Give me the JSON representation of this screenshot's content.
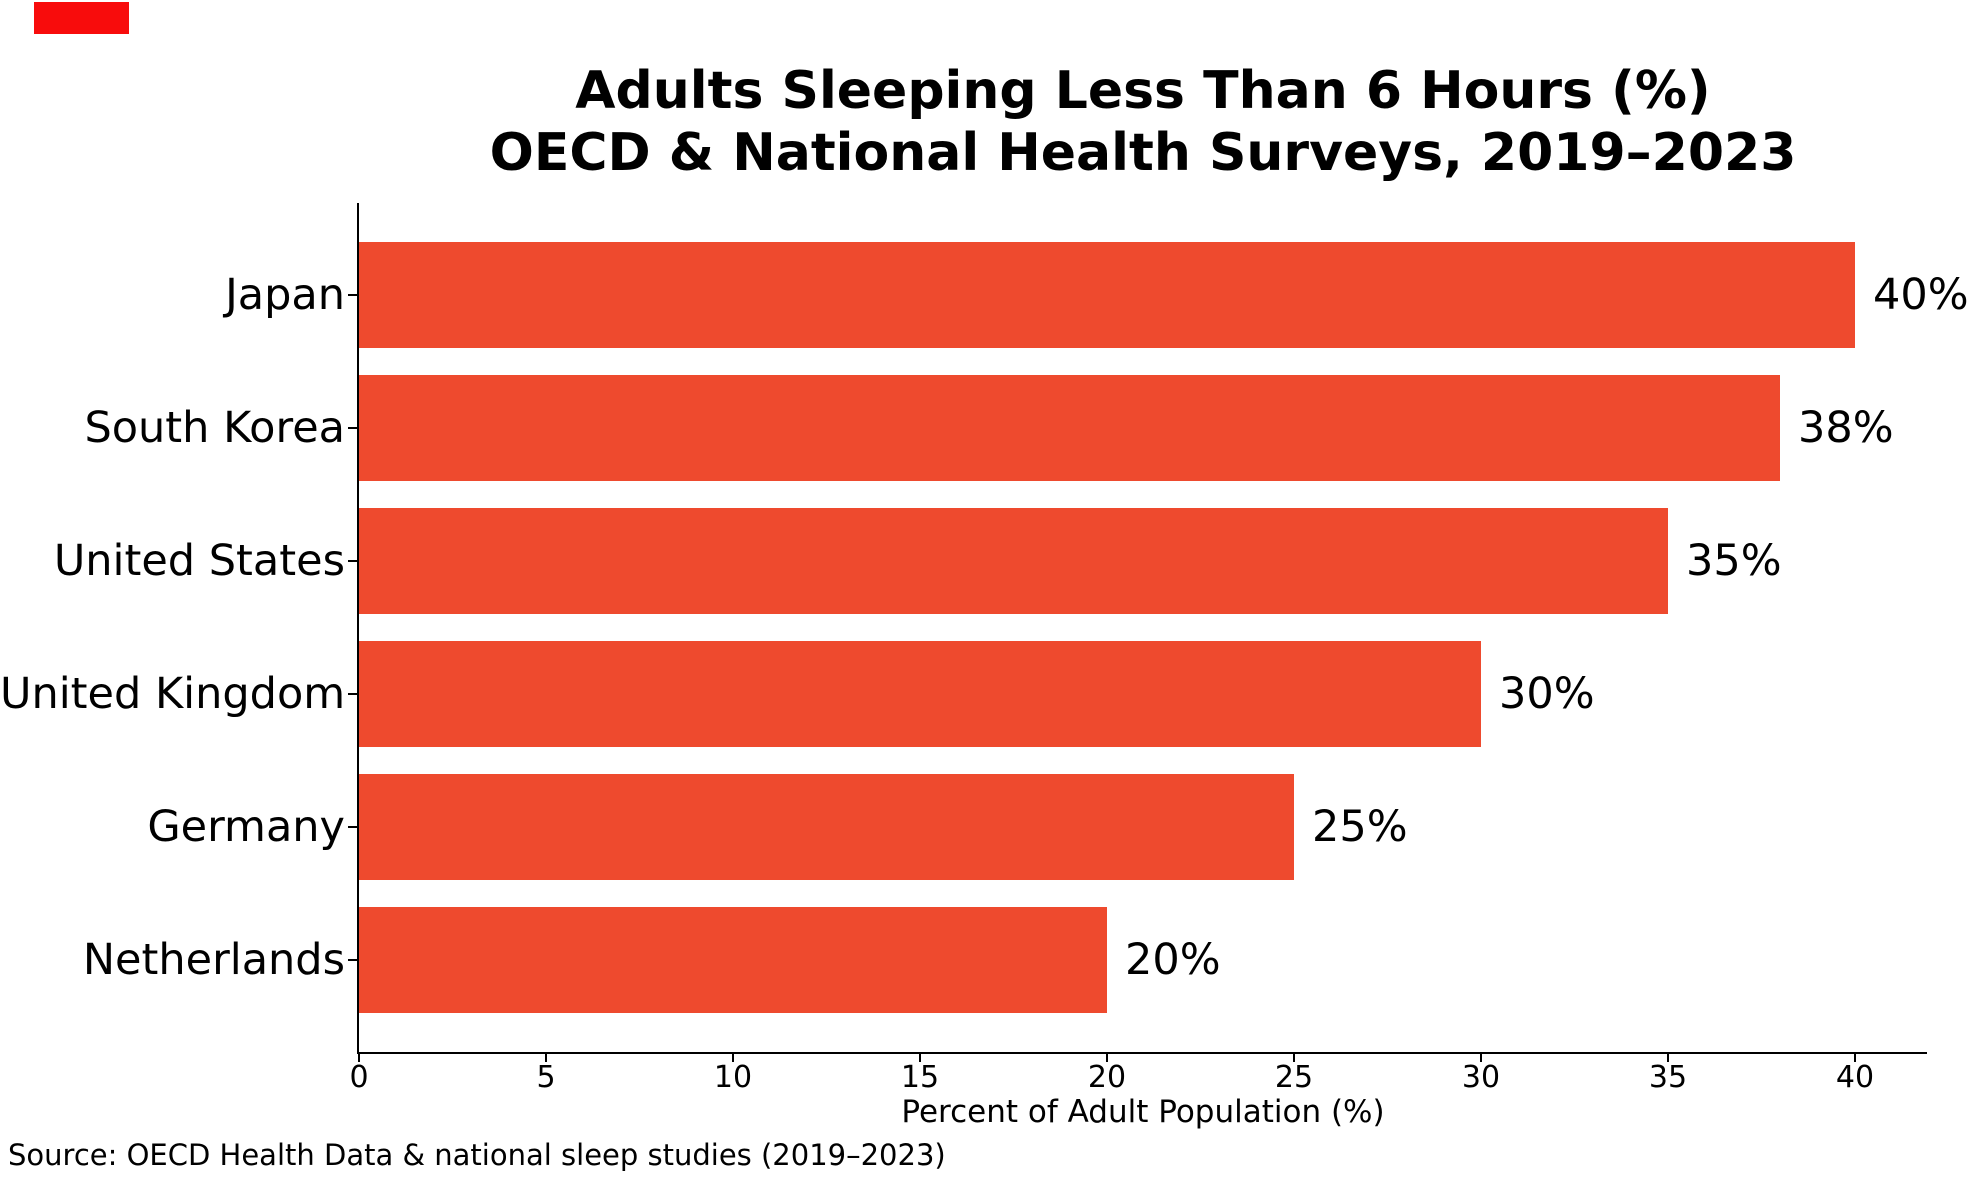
{
  "marker": {
    "color": "#f80c0c"
  },
  "chart_data": {
    "type": "bar",
    "orientation": "horizontal",
    "title_line1": "Adults Sleeping Less Than 6 Hours (%)",
    "title_line2": "OECD & National Health Surveys, 2019–2023",
    "categories": [
      "Japan",
      "South Korea",
      "United States",
      "United Kingdom",
      "Germany",
      "Netherlands"
    ],
    "values": [
      40,
      38,
      35,
      30,
      25,
      20
    ],
    "value_labels": [
      "40%",
      "38%",
      "35%",
      "30%",
      "25%",
      "20%"
    ],
    "xlabel": "Percent of Adult Population (%)",
    "x_ticks": [
      "0",
      "5",
      "10",
      "15",
      "20",
      "25",
      "30",
      "35",
      "40"
    ],
    "x_tick_values": [
      0,
      5,
      10,
      15,
      20,
      25,
      30,
      35,
      40
    ],
    "xlim": [
      0,
      42
    ],
    "bar_color": "#ee4a2e",
    "axis_color": "#000000",
    "text_color": "#000000",
    "grid": false,
    "legend": "none"
  },
  "source_note": "Source: OECD Health Data & national sleep studies (2019–2023)"
}
